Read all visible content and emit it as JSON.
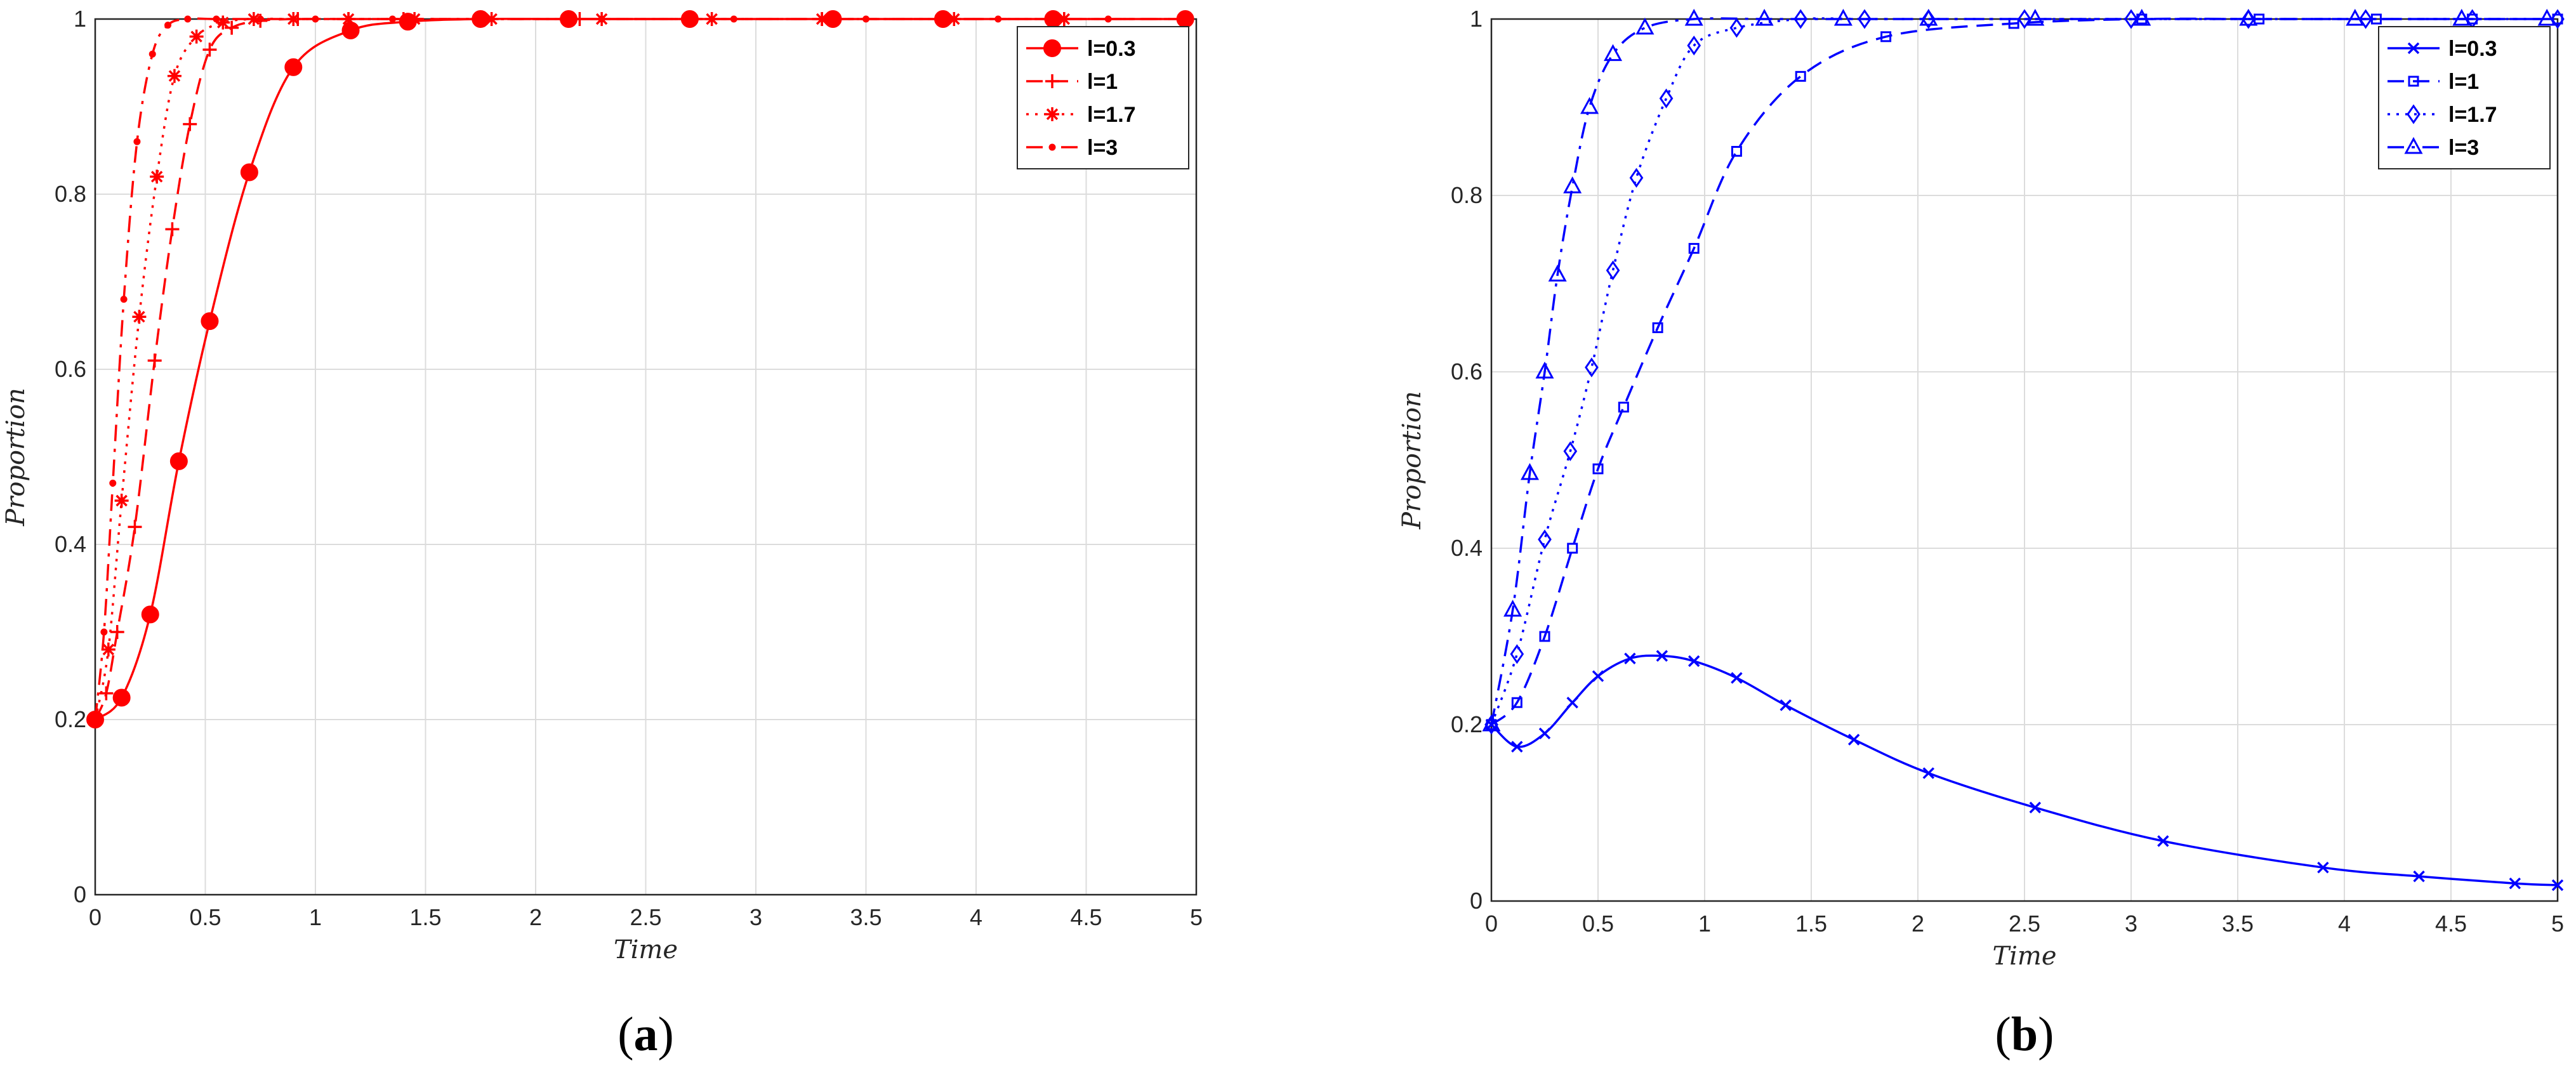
{
  "chart_data": [
    {
      "type": "line",
      "panel": "a",
      "caption_letter": "a",
      "color": "#ff0000",
      "xlabel": "Time",
      "ylabel": "Proportion",
      "xlim": [
        0,
        5
      ],
      "ylim": [
        0,
        1
      ],
      "xticks": [
        "0",
        "0.5",
        "1",
        "1.5",
        "2",
        "2.5",
        "3",
        "3.5",
        "4",
        "4.5",
        "5"
      ],
      "yticks": [
        "0",
        "0.2",
        "0.4",
        "0.6",
        "0.8",
        "1"
      ],
      "grid": true,
      "legend_position": "top-right",
      "series": [
        {
          "name": "l=0.3",
          "line_style": "solid",
          "marker": "filled-circle",
          "x": [
            0,
            0.12,
            0.25,
            0.38,
            0.52,
            0.7,
            0.9,
            1.16,
            1.42,
            1.75,
            2.15,
            2.7,
            3.35,
            3.85,
            4.35,
            4.95
          ],
          "y": [
            0.2,
            0.225,
            0.32,
            0.495,
            0.655,
            0.825,
            0.945,
            0.987,
            0.997,
            1,
            1,
            1,
            1,
            1,
            1,
            1
          ]
        },
        {
          "name": "l=1",
          "line_style": "dashed",
          "marker": "plus",
          "x": [
            0,
            0.05,
            0.1,
            0.18,
            0.27,
            0.35,
            0.43,
            0.52,
            0.62,
            0.75,
            0.92,
            1.15,
            1.4,
            1.75,
            2.2,
            2.7,
            3.3,
            3.85,
            4.4,
            4.95
          ],
          "y": [
            0.2,
            0.23,
            0.3,
            0.42,
            0.61,
            0.76,
            0.88,
            0.965,
            0.99,
            0.998,
            1,
            1,
            1,
            1,
            1,
            1,
            1,
            1,
            1,
            1
          ]
        },
        {
          "name": "l=1.7",
          "line_style": "dotted",
          "marker": "asterisk",
          "x": [
            0,
            0.06,
            0.12,
            0.2,
            0.28,
            0.36,
            0.46,
            0.58,
            0.72,
            0.9,
            1.15,
            1.45,
            1.8,
            2.3,
            2.8,
            3.3,
            3.9,
            4.4,
            4.95
          ],
          "y": [
            0.2,
            0.28,
            0.45,
            0.66,
            0.82,
            0.935,
            0.98,
            0.996,
            1,
            1,
            1,
            1,
            1,
            1,
            1,
            1,
            1,
            1,
            1
          ]
        },
        {
          "name": "l=3",
          "line_style": "dashdot",
          "marker": "point",
          "x": [
            0,
            0.04,
            0.08,
            0.13,
            0.19,
            0.26,
            0.33,
            0.42,
            0.55,
            0.75,
            1.0,
            1.35,
            1.75,
            2.3,
            2.9,
            3.5,
            4.1,
            4.6,
            4.95
          ],
          "y": [
            0.2,
            0.3,
            0.47,
            0.68,
            0.86,
            0.96,
            0.993,
            1,
            1,
            1,
            1,
            1,
            1,
            1,
            1,
            1,
            1,
            1,
            1
          ]
        }
      ]
    },
    {
      "type": "line",
      "panel": "b",
      "caption_letter": "b",
      "color": "#0000ff",
      "xlabel": "Time",
      "ylabel": "Proportion",
      "xlim": [
        0,
        5
      ],
      "ylim": [
        0,
        1
      ],
      "xticks": [
        "0",
        "0.5",
        "1",
        "1.5",
        "2",
        "2.5",
        "3",
        "3.5",
        "4",
        "4.5",
        "5"
      ],
      "yticks": [
        "0",
        "0.2",
        "0.4",
        "0.6",
        "0.8",
        "1"
      ],
      "grid": true,
      "legend_position": "top-right",
      "series": [
        {
          "name": "l=0.3",
          "line_style": "solid",
          "marker": "cross",
          "x": [
            0,
            0.12,
            0.25,
            0.38,
            0.5,
            0.65,
            0.8,
            0.95,
            1.15,
            1.38,
            1.7,
            2.05,
            2.55,
            3.15,
            3.9,
            4.35,
            4.8,
            5.0
          ],
          "y": [
            0.2,
            0.175,
            0.19,
            0.225,
            0.255,
            0.275,
            0.278,
            0.272,
            0.253,
            0.222,
            0.183,
            0.145,
            0.106,
            0.068,
            0.038,
            0.028,
            0.02,
            0.018
          ]
        },
        {
          "name": "l=1",
          "line_style": "dashed",
          "marker": "square",
          "x": [
            0,
            0.12,
            0.25,
            0.38,
            0.5,
            0.62,
            0.78,
            0.95,
            1.15,
            1.45,
            1.85,
            2.45,
            3.05,
            3.6,
            4.15,
            4.6,
            5.0
          ],
          "y": [
            0.2,
            0.225,
            0.3,
            0.4,
            0.49,
            0.56,
            0.65,
            0.74,
            0.85,
            0.935,
            0.98,
            0.995,
            1,
            1,
            1,
            1,
            1
          ]
        },
        {
          "name": "l=1.7",
          "line_style": "dotted",
          "marker": "diamond",
          "x": [
            0,
            0.12,
            0.25,
            0.37,
            0.47,
            0.57,
            0.68,
            0.82,
            0.95,
            1.15,
            1.45,
            1.75,
            2.05,
            2.5,
            3.0,
            3.55,
            4.1,
            4.6,
            5.0
          ],
          "y": [
            0.2,
            0.28,
            0.41,
            0.51,
            0.605,
            0.715,
            0.82,
            0.91,
            0.97,
            0.99,
            1,
            1,
            1,
            1,
            1,
            1,
            1,
            1,
            1
          ]
        },
        {
          "name": "l=3",
          "line_style": "dashdot",
          "marker": "triangle",
          "x": [
            0,
            0.1,
            0.18,
            0.25,
            0.31,
            0.38,
            0.46,
            0.57,
            0.72,
            0.95,
            1.28,
            1.65,
            2.05,
            2.55,
            3.05,
            3.55,
            4.05,
            4.55,
            4.95
          ],
          "y": [
            0.2,
            0.33,
            0.485,
            0.6,
            0.71,
            0.81,
            0.9,
            0.96,
            0.99,
            1,
            1,
            1,
            1,
            1,
            1,
            1,
            1,
            1,
            1
          ]
        }
      ]
    }
  ]
}
